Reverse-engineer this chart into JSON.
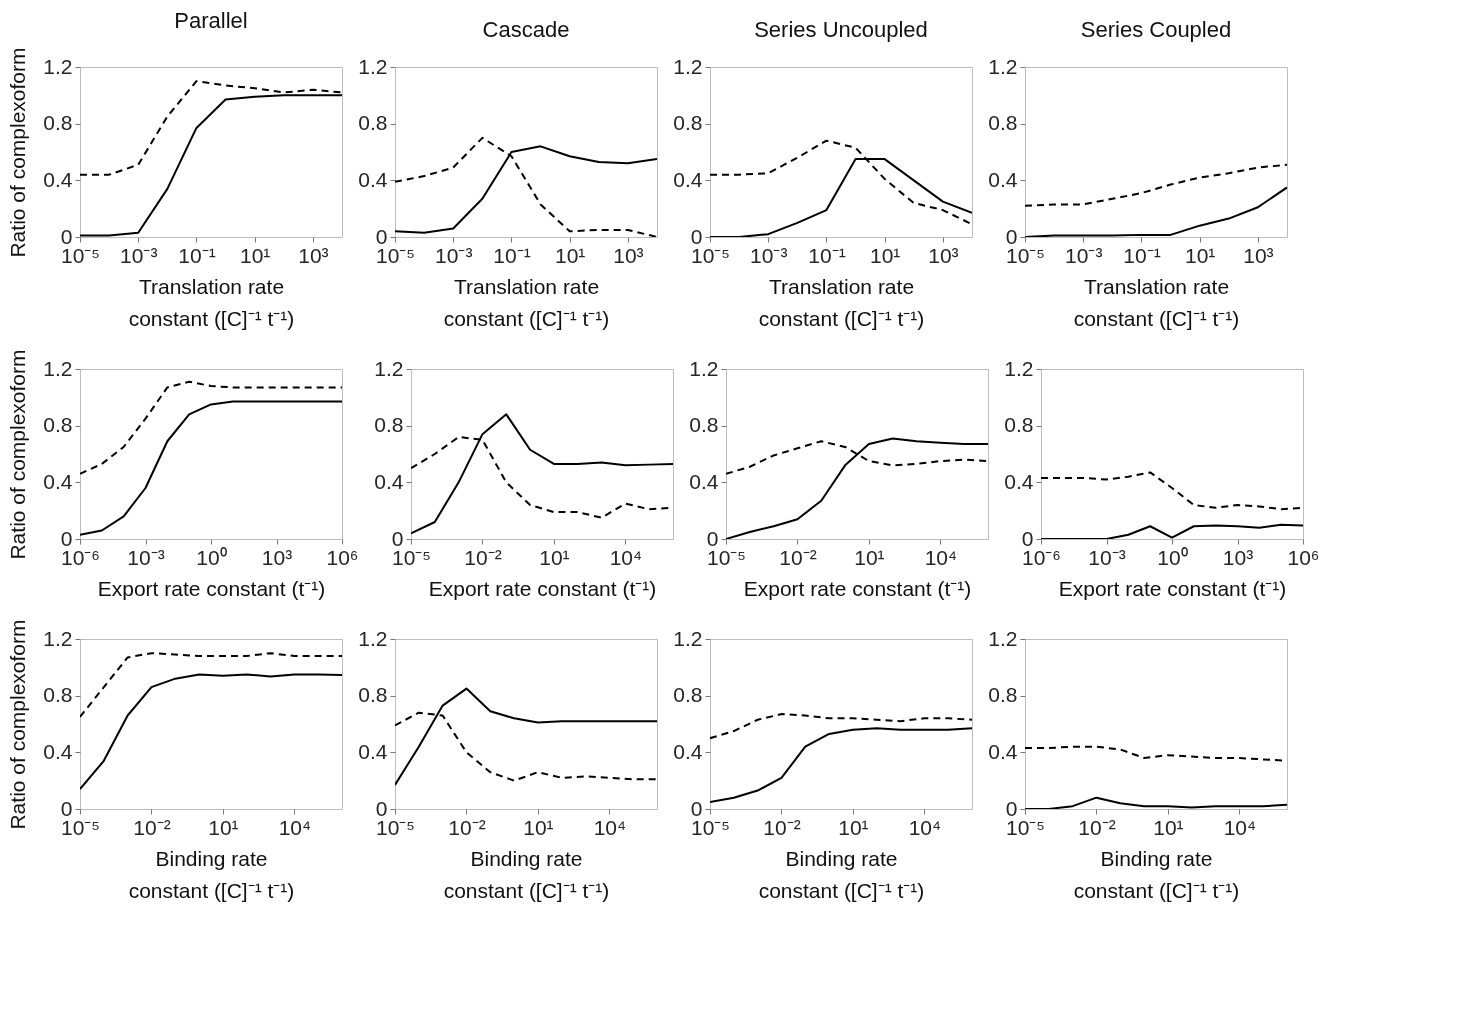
{
  "chart_data": [
    {
      "type": "line",
      "title": "Parallel",
      "xlabel": "Translation rate\nconstant ([C]⁻¹ t⁻¹)",
      "ylabel": "Ratio of complexoform",
      "log": "x",
      "marker": "none",
      "xlim": [
        1e-05,
        10000.0
      ],
      "xticks": [
        {
          "value": 1e-05,
          "label": "10⁻⁵"
        },
        {
          "value": 0.001,
          "label": "10⁻³"
        },
        {
          "value": 0.1,
          "label": "10⁻¹"
        },
        {
          "value": 10,
          "label": "10¹"
        },
        {
          "value": 1000,
          "label": "10³"
        }
      ],
      "ylim": [
        0,
        1.2
      ],
      "yticks": [
        0,
        0.4,
        0.8,
        1.2
      ],
      "x": [
        1e-05,
        0.0001,
        0.001,
        0.01,
        0.1,
        1,
        10,
        100,
        1000,
        10000.0
      ],
      "series": [
        {
          "color": "#000000",
          "line_style": "solid",
          "values": [
            0.01,
            0.01,
            0.03,
            0.34,
            0.77,
            0.97,
            0.99,
            1.0,
            1.0,
            1.0
          ]
        },
        {
          "color": "#000000",
          "line_style": "dashed",
          "values": [
            0.44,
            0.44,
            0.51,
            0.85,
            1.1,
            1.07,
            1.05,
            1.02,
            1.04,
            1.02
          ]
        }
      ]
    },
    {
      "type": "line",
      "title": "Cascade",
      "xlabel": "Translation rate\nconstant ([C]⁻¹ t⁻¹)",
      "log": "x",
      "marker": "none",
      "xlim": [
        1e-05,
        10000.0
      ],
      "xticks": [
        {
          "value": 1e-05,
          "label": "10⁻⁵"
        },
        {
          "value": 0.001,
          "label": "10⁻³"
        },
        {
          "value": 0.1,
          "label": "10⁻¹"
        },
        {
          "value": 10,
          "label": "10¹"
        },
        {
          "value": 1000,
          "label": "10³"
        }
      ],
      "ylim": [
        0,
        1.2
      ],
      "yticks": [
        0,
        0.4,
        0.8,
        1.2
      ],
      "x": [
        1e-05,
        0.0001,
        0.001,
        0.01,
        0.1,
        1,
        10,
        100,
        1000,
        10000.0
      ],
      "series": [
        {
          "color": "#000000",
          "line_style": "solid",
          "values": [
            0.04,
            0.03,
            0.06,
            0.27,
            0.6,
            0.64,
            0.57,
            0.53,
            0.52,
            0.55
          ]
        },
        {
          "color": "#000000",
          "line_style": "dashed",
          "values": [
            0.39,
            0.43,
            0.49,
            0.7,
            0.57,
            0.23,
            0.04,
            0.05,
            0.05,
            0.0
          ]
        }
      ]
    },
    {
      "type": "line",
      "title": "Series Uncoupled",
      "xlabel": "Translation rate\nconstant ([C]⁻¹ t⁻¹)",
      "log": "x",
      "marker": "none",
      "xlim": [
        1e-05,
        10000.0
      ],
      "xticks": [
        {
          "value": 1e-05,
          "label": "10⁻⁵"
        },
        {
          "value": 0.001,
          "label": "10⁻³"
        },
        {
          "value": 0.1,
          "label": "10⁻¹"
        },
        {
          "value": 10,
          "label": "10¹"
        },
        {
          "value": 1000,
          "label": "10³"
        }
      ],
      "ylim": [
        0,
        1.2
      ],
      "yticks": [
        0,
        0.4,
        0.8,
        1.2
      ],
      "x": [
        1e-05,
        0.0001,
        0.001,
        0.01,
        0.1,
        1,
        10,
        100,
        1000,
        10000.0
      ],
      "series": [
        {
          "color": "#000000",
          "line_style": "solid",
          "values": [
            0.0,
            0.0,
            0.02,
            0.1,
            0.19,
            0.55,
            0.55,
            0.4,
            0.25,
            0.17
          ]
        },
        {
          "color": "#000000",
          "line_style": "dashed",
          "values": [
            0.44,
            0.44,
            0.45,
            0.56,
            0.68,
            0.63,
            0.41,
            0.24,
            0.19,
            0.09
          ]
        }
      ]
    },
    {
      "type": "line",
      "title": "Series Coupled",
      "xlabel": "Translation rate\nconstant ([C]⁻¹ t⁻¹)",
      "log": "x",
      "marker": "none",
      "xlim": [
        1e-05,
        10000.0
      ],
      "xticks": [
        {
          "value": 1e-05,
          "label": "10⁻⁵"
        },
        {
          "value": 0.001,
          "label": "10⁻³"
        },
        {
          "value": 0.1,
          "label": "10⁻¹"
        },
        {
          "value": 10,
          "label": "10¹"
        },
        {
          "value": 1000,
          "label": "10³"
        }
      ],
      "ylim": [
        0,
        1.2
      ],
      "yticks": [
        0,
        0.4,
        0.8,
        1.2
      ],
      "x": [
        1e-05,
        0.0001,
        0.001,
        0.01,
        0.1,
        1,
        10,
        100,
        1000,
        10000.0
      ],
      "series": [
        {
          "color": "#000000",
          "line_style": "solid",
          "values": [
            0.0,
            0.01,
            0.01,
            0.01,
            0.015,
            0.015,
            0.08,
            0.13,
            0.21,
            0.35
          ]
        },
        {
          "color": "#000000",
          "line_style": "dashed",
          "values": [
            0.22,
            0.23,
            0.23,
            0.27,
            0.31,
            0.37,
            0.42,
            0.45,
            0.49,
            0.51
          ]
        }
      ]
    },
    {
      "type": "line",
      "xlabel": "Export rate constant (t⁻¹)",
      "ylabel": "Ratio of complexoform",
      "log": "x",
      "marker": "none",
      "xlim": [
        1e-06,
        1000000.0
      ],
      "xticks": [
        {
          "value": 1e-06,
          "label": "10⁻⁶"
        },
        {
          "value": 0.001,
          "label": "10⁻³"
        },
        {
          "value": 1,
          "label": "10⁰"
        },
        {
          "value": 1000,
          "label": "10³"
        },
        {
          "value": 1000000.0,
          "label": "10⁶"
        }
      ],
      "ylim": [
        0,
        1.2
      ],
      "yticks": [
        0,
        0.4,
        0.8,
        1.2
      ],
      "x": [
        1e-06,
        1e-05,
        0.0001,
        0.001,
        0.01,
        0.1,
        1,
        10,
        100,
        1000,
        10000.0,
        100000.0,
        1000000.0
      ],
      "series": [
        {
          "color": "#000000",
          "line_style": "solid",
          "values": [
            0.03,
            0.06,
            0.16,
            0.36,
            0.69,
            0.88,
            0.95,
            0.97,
            0.97,
            0.97,
            0.97,
            0.97,
            0.97
          ]
        },
        {
          "color": "#000000",
          "line_style": "dashed",
          "values": [
            0.46,
            0.53,
            0.65,
            0.85,
            1.07,
            1.11,
            1.08,
            1.07,
            1.07,
            1.07,
            1.07,
            1.07,
            1.07
          ]
        }
      ]
    },
    {
      "type": "line",
      "xlabel": "Export rate constant (t⁻¹)",
      "log": "x",
      "marker": "none",
      "xlim": [
        1e-05,
        1000000.0
      ],
      "xticks": [
        {
          "value": 1e-05,
          "label": "10⁻⁵"
        },
        {
          "value": 0.01,
          "label": "10⁻²"
        },
        {
          "value": 10,
          "label": "10¹"
        },
        {
          "value": 10000.0,
          "label": "10⁴"
        }
      ],
      "ylim": [
        0,
        1.2
      ],
      "yticks": [
        0,
        0.4,
        0.8,
        1.2
      ],
      "x": [
        1e-05,
        0.0001,
        0.001,
        0.01,
        0.1,
        1,
        10,
        100,
        1000,
        10000.0,
        100000.0,
        1000000.0
      ],
      "series": [
        {
          "color": "#000000",
          "line_style": "solid",
          "values": [
            0.04,
            0.12,
            0.4,
            0.74,
            0.88,
            0.63,
            0.53,
            0.53,
            0.54,
            0.52,
            0.525,
            0.53
          ]
        },
        {
          "color": "#000000",
          "line_style": "dashed",
          "values": [
            0.5,
            0.6,
            0.72,
            0.7,
            0.4,
            0.24,
            0.19,
            0.19,
            0.15,
            0.25,
            0.21,
            0.22
          ]
        }
      ]
    },
    {
      "type": "line",
      "xlabel": "Export rate constant (t⁻¹)",
      "log": "x",
      "marker": "none",
      "xlim": [
        1e-05,
        1000000.0
      ],
      "xticks": [
        {
          "value": 1e-05,
          "label": "10⁻⁵"
        },
        {
          "value": 0.01,
          "label": "10⁻²"
        },
        {
          "value": 10,
          "label": "10¹"
        },
        {
          "value": 10000.0,
          "label": "10⁴"
        }
      ],
      "ylim": [
        0,
        1.2
      ],
      "yticks": [
        0,
        0.4,
        0.8,
        1.2
      ],
      "x": [
        1e-05,
        0.0001,
        0.001,
        0.01,
        0.1,
        1,
        10,
        100,
        1000,
        10000.0,
        100000.0,
        1000000.0
      ],
      "series": [
        {
          "color": "#000000",
          "line_style": "solid",
          "values": [
            0.0,
            0.05,
            0.09,
            0.14,
            0.27,
            0.52,
            0.67,
            0.71,
            0.69,
            0.68,
            0.67,
            0.67
          ]
        },
        {
          "color": "#000000",
          "line_style": "dashed",
          "values": [
            0.46,
            0.51,
            0.59,
            0.64,
            0.69,
            0.65,
            0.55,
            0.52,
            0.53,
            0.55,
            0.56,
            0.55
          ]
        }
      ]
    },
    {
      "type": "line",
      "xlabel": "Export rate constant (t⁻¹)",
      "log": "x",
      "marker": "none",
      "xlim": [
        1e-06,
        1000000.0
      ],
      "xticks": [
        {
          "value": 1e-06,
          "label": "10⁻⁶"
        },
        {
          "value": 0.001,
          "label": "10⁻³"
        },
        {
          "value": 1,
          "label": "10⁰"
        },
        {
          "value": 1000,
          "label": "10³"
        },
        {
          "value": 1000000.0,
          "label": "10⁶"
        }
      ],
      "ylim": [
        0,
        1.2
      ],
      "yticks": [
        0,
        0.4,
        0.8,
        1.2
      ],
      "x": [
        1e-06,
        1e-05,
        0.0001,
        0.001,
        0.01,
        0.1,
        1,
        10,
        100,
        1000,
        10000.0,
        100000.0,
        1000000.0
      ],
      "series": [
        {
          "color": "#000000",
          "line_style": "solid",
          "values": [
            0.0,
            0.0,
            0.0,
            0.0,
            0.03,
            0.09,
            0.01,
            0.09,
            0.095,
            0.09,
            0.08,
            0.1,
            0.095
          ]
        },
        {
          "color": "#000000",
          "line_style": "dashed",
          "values": [
            0.43,
            0.43,
            0.43,
            0.42,
            0.44,
            0.47,
            0.36,
            0.24,
            0.22,
            0.24,
            0.23,
            0.21,
            0.22
          ]
        }
      ]
    },
    {
      "type": "line",
      "xlabel": "Binding rate\nconstant ([C]⁻¹ t⁻¹)",
      "ylabel": "Ratio of complexoform",
      "log": "x",
      "marker": "none",
      "xlim": [
        1e-05,
        1000000.0
      ],
      "xticks": [
        {
          "value": 1e-05,
          "label": "10⁻⁵"
        },
        {
          "value": 0.01,
          "label": "10⁻²"
        },
        {
          "value": 10,
          "label": "10¹"
        },
        {
          "value": 10000.0,
          "label": "10⁴"
        }
      ],
      "ylim": [
        0,
        1.2
      ],
      "yticks": [
        0,
        0.4,
        0.8,
        1.2
      ],
      "x": [
        1e-05,
        0.0001,
        0.001,
        0.01,
        0.1,
        1,
        10,
        100,
        1000,
        10000.0,
        100000.0,
        1000000.0
      ],
      "series": [
        {
          "color": "#000000",
          "line_style": "solid",
          "values": [
            0.14,
            0.34,
            0.66,
            0.86,
            0.92,
            0.95,
            0.94,
            0.95,
            0.935,
            0.95,
            0.95,
            0.945
          ]
        },
        {
          "color": "#000000",
          "line_style": "dashed",
          "values": [
            0.65,
            0.86,
            1.07,
            1.1,
            1.09,
            1.08,
            1.08,
            1.08,
            1.1,
            1.08,
            1.08,
            1.08
          ]
        }
      ]
    },
    {
      "type": "line",
      "xlabel": "Binding rate\nconstant ([C]⁻¹ t⁻¹)",
      "log": "x",
      "marker": "none",
      "xlim": [
        1e-05,
        1000000.0
      ],
      "xticks": [
        {
          "value": 1e-05,
          "label": "10⁻⁵"
        },
        {
          "value": 0.01,
          "label": "10⁻²"
        },
        {
          "value": 10,
          "label": "10¹"
        },
        {
          "value": 10000.0,
          "label": "10⁴"
        }
      ],
      "ylim": [
        0,
        1.2
      ],
      "yticks": [
        0,
        0.4,
        0.8,
        1.2
      ],
      "x": [
        1e-05,
        0.0001,
        0.001,
        0.01,
        0.1,
        1,
        10,
        100,
        1000,
        10000.0,
        100000.0,
        1000000.0
      ],
      "series": [
        {
          "color": "#000000",
          "line_style": "solid",
          "values": [
            0.17,
            0.44,
            0.73,
            0.85,
            0.69,
            0.64,
            0.61,
            0.62,
            0.62,
            0.62,
            0.62,
            0.62
          ]
        },
        {
          "color": "#000000",
          "line_style": "dashed",
          "values": [
            0.59,
            0.68,
            0.66,
            0.4,
            0.26,
            0.2,
            0.26,
            0.22,
            0.23,
            0.22,
            0.21,
            0.21
          ]
        }
      ]
    },
    {
      "type": "line",
      "xlabel": "Binding rate\nconstant ([C]⁻¹ t⁻¹)",
      "log": "x",
      "marker": "none",
      "xlim": [
        1e-05,
        1000000.0
      ],
      "xticks": [
        {
          "value": 1e-05,
          "label": "10⁻⁵"
        },
        {
          "value": 0.01,
          "label": "10⁻²"
        },
        {
          "value": 10,
          "label": "10¹"
        },
        {
          "value": 10000.0,
          "label": "10⁴"
        }
      ],
      "ylim": [
        0,
        1.2
      ],
      "yticks": [
        0,
        0.4,
        0.8,
        1.2
      ],
      "x": [
        1e-05,
        0.0001,
        0.001,
        0.01,
        0.1,
        1,
        10,
        100,
        1000,
        10000.0,
        100000.0,
        1000000.0
      ],
      "series": [
        {
          "color": "#000000",
          "line_style": "solid",
          "values": [
            0.05,
            0.08,
            0.13,
            0.22,
            0.44,
            0.53,
            0.56,
            0.57,
            0.56,
            0.56,
            0.56,
            0.57
          ]
        },
        {
          "color": "#000000",
          "line_style": "dashed",
          "values": [
            0.5,
            0.55,
            0.63,
            0.67,
            0.66,
            0.64,
            0.64,
            0.63,
            0.62,
            0.64,
            0.64,
            0.63
          ]
        }
      ]
    },
    {
      "type": "line",
      "xlabel": "Binding rate\nconstant ([C]⁻¹ t⁻¹)",
      "log": "x",
      "marker": "none",
      "xlim": [
        1e-05,
        1000000.0
      ],
      "xticks": [
        {
          "value": 1e-05,
          "label": "10⁻⁵"
        },
        {
          "value": 0.01,
          "label": "10⁻²"
        },
        {
          "value": 10,
          "label": "10¹"
        },
        {
          "value": 10000.0,
          "label": "10⁴"
        }
      ],
      "ylim": [
        0,
        1.2
      ],
      "yticks": [
        0,
        0.4,
        0.8,
        1.2
      ],
      "x": [
        1e-05,
        0.0001,
        0.001,
        0.01,
        0.1,
        1,
        10,
        100,
        1000,
        10000.0,
        100000.0,
        1000000.0
      ],
      "series": [
        {
          "color": "#000000",
          "line_style": "solid",
          "values": [
            0.0,
            0.0,
            0.02,
            0.08,
            0.04,
            0.02,
            0.02,
            0.01,
            0.02,
            0.02,
            0.02,
            0.03
          ]
        },
        {
          "color": "#000000",
          "line_style": "dashed",
          "values": [
            0.43,
            0.43,
            0.44,
            0.44,
            0.42,
            0.36,
            0.38,
            0.37,
            0.36,
            0.36,
            0.35,
            0.34
          ]
        }
      ]
    }
  ]
}
